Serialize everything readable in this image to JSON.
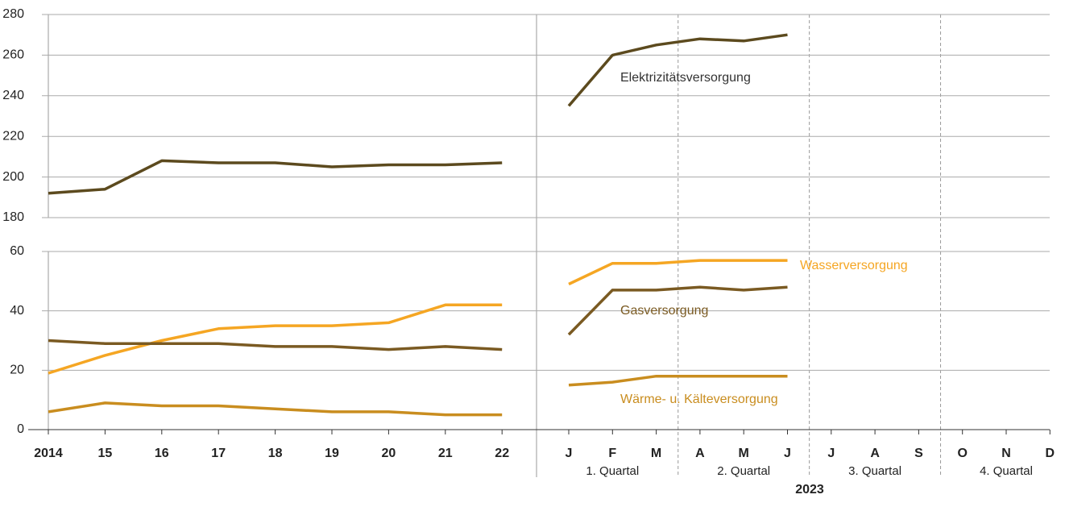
{
  "chart_data": {
    "type": "line",
    "categories": [
      "2014",
      "15",
      "16",
      "17",
      "18",
      "19",
      "20",
      "21",
      "22",
      null,
      "J",
      "F",
      "M",
      "A",
      "M",
      "J",
      "J",
      "A",
      "S",
      "O",
      "N",
      "D"
    ],
    "quarters": [
      "1. Quartal",
      "2. Quartal",
      "3. Quartal",
      "4. Quartal"
    ],
    "year_label": "2023",
    "grid": true,
    "panels": [
      {
        "ylim": [
          180,
          280
        ],
        "yticks": [
          180,
          200,
          220,
          240,
          260,
          280
        ],
        "series": [
          {
            "name": "Elektrizitätsversorgung",
            "color": "#5c4a1e",
            "values": [
              192,
              194,
              208,
              207,
              207,
              205,
              206,
              206,
              207,
              null,
              235,
              260,
              265,
              268,
              267,
              270,
              null,
              null,
              null,
              null,
              null,
              null
            ]
          }
        ]
      },
      {
        "ylim": [
          0,
          60
        ],
        "yticks": [
          0,
          20,
          40,
          60
        ],
        "series": [
          {
            "name": "Wasserversorgung",
            "color": "#f5a623",
            "values": [
              19,
              25,
              30,
              34,
              35,
              35,
              36,
              42,
              42,
              null,
              49,
              56,
              56,
              57,
              57,
              57,
              null,
              null,
              null,
              null,
              null,
              null
            ]
          },
          {
            "name": "Gasversorgung",
            "color": "#7a5a22",
            "values": [
              30,
              29,
              29,
              29,
              28,
              28,
              27,
              28,
              27,
              null,
              32,
              47,
              47,
              48,
              47,
              48,
              null,
              null,
              null,
              null,
              null,
              null
            ]
          },
          {
            "name": "Wärme- u. Kälteversorgung",
            "color": "#c98d1f",
            "values": [
              6,
              9,
              8,
              8,
              7,
              6,
              6,
              5,
              5,
              null,
              15,
              16,
              18,
              18,
              18,
              18,
              null,
              null,
              null,
              null,
              null,
              null
            ]
          }
        ]
      }
    ]
  }
}
